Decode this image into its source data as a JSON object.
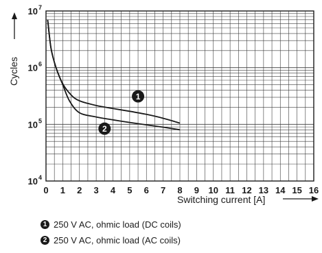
{
  "chart_data": {
    "type": "line",
    "xlabel": "Switching current [A]",
    "ylabel": "Cycles",
    "y_scale": "log",
    "xlim": [
      0,
      16
    ],
    "ylim": [
      10000,
      10000000
    ],
    "x_ticks": [
      "0",
      "1",
      "2",
      "3",
      "4",
      "5",
      "6",
      "7",
      "8",
      "9",
      "10",
      "11",
      "12",
      "13",
      "14",
      "15",
      "16"
    ],
    "y_ticks": [
      {
        "base": "10",
        "exp": "4"
      },
      {
        "base": "10",
        "exp": "5"
      },
      {
        "base": "10",
        "exp": "6"
      },
      {
        "base": "10",
        "exp": "7"
      }
    ],
    "grid": true,
    "series": [
      {
        "marker": "1",
        "x": [
          0.1,
          0.3,
          0.6,
          1.0,
          1.5,
          2.0,
          3.0,
          4.0,
          5.0,
          6.0,
          7.0,
          8.0
        ],
        "y": [
          7000000,
          2200000,
          1000000,
          520000,
          330000,
          260000,
          215000,
          190000,
          170000,
          150000,
          128000,
          105000
        ]
      },
      {
        "marker": "2",
        "x": [
          0.1,
          0.3,
          0.6,
          1.0,
          1.4,
          2.0,
          3.0,
          4.0,
          5.0,
          6.0,
          7.0,
          8.0
        ],
        "y": [
          7000000,
          2200000,
          1000000,
          500000,
          260000,
          160000,
          135000,
          120000,
          108000,
          98000,
          89000,
          80000
        ]
      }
    ],
    "legend": [
      {
        "marker": "1",
        "label": "250 V AC, ohmic load (DC coils)"
      },
      {
        "marker": "2",
        "label": "250 V AC, ohmic load (AC coils)"
      }
    ],
    "line_color": "#1a1a1a",
    "grid_color": "#3a3a3a"
  }
}
